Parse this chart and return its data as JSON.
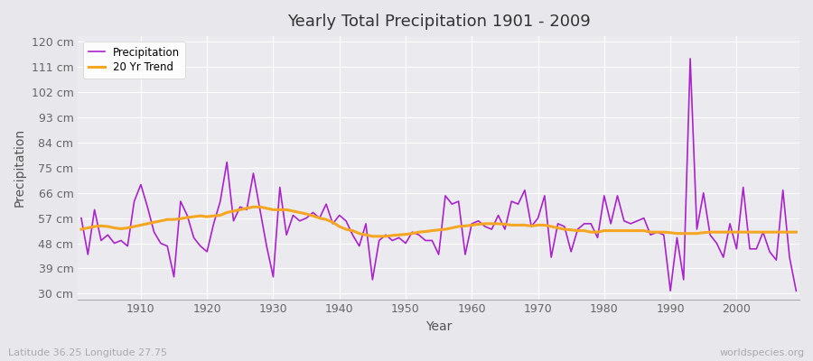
{
  "title": "Yearly Total Precipitation 1901 - 2009",
  "xlabel": "Year",
  "ylabel": "Precipitation",
  "lat_lon_label": "Latitude 36.25 Longitude 27.75",
  "watermark": "worldspecies.org",
  "years": [
    1901,
    1902,
    1903,
    1904,
    1905,
    1906,
    1907,
    1908,
    1909,
    1910,
    1911,
    1912,
    1913,
    1914,
    1915,
    1916,
    1917,
    1918,
    1919,
    1920,
    1921,
    1922,
    1923,
    1924,
    1925,
    1926,
    1927,
    1928,
    1929,
    1930,
    1931,
    1932,
    1933,
    1934,
    1935,
    1936,
    1937,
    1938,
    1939,
    1940,
    1941,
    1942,
    1943,
    1944,
    1945,
    1946,
    1947,
    1948,
    1949,
    1950,
    1951,
    1952,
    1953,
    1954,
    1955,
    1956,
    1957,
    1958,
    1959,
    1960,
    1961,
    1962,
    1963,
    1964,
    1965,
    1966,
    1967,
    1968,
    1969,
    1970,
    1971,
    1972,
    1973,
    1974,
    1975,
    1976,
    1977,
    1978,
    1979,
    1980,
    1981,
    1982,
    1983,
    1984,
    1985,
    1986,
    1987,
    1988,
    1989,
    1990,
    1991,
    1992,
    1993,
    1994,
    1995,
    1996,
    1997,
    1998,
    1999,
    2000,
    2001,
    2002,
    2003,
    2004,
    2005,
    2006,
    2007,
    2008,
    2009
  ],
  "precipitation": [
    57,
    44,
    60,
    49,
    51,
    48,
    49,
    47,
    63,
    69,
    61,
    52,
    48,
    47,
    36,
    63,
    58,
    50,
    47,
    45,
    55,
    63,
    77,
    56,
    61,
    60,
    73,
    60,
    47,
    36,
    68,
    51,
    58,
    56,
    57,
    59,
    57,
    62,
    55,
    58,
    56,
    51,
    47,
    55,
    35,
    49,
    51,
    49,
    50,
    48,
    52,
    51,
    49,
    49,
    44,
    65,
    62,
    63,
    44,
    55,
    56,
    54,
    53,
    58,
    53,
    63,
    62,
    67,
    54,
    57,
    65,
    43,
    55,
    54,
    45,
    53,
    55,
    55,
    50,
    65,
    55,
    65,
    56,
    55,
    56,
    57,
    51,
    52,
    51,
    31,
    50,
    35,
    114,
    53,
    66,
    51,
    48,
    43,
    55,
    46,
    68,
    46,
    46,
    52,
    45,
    42,
    67,
    43,
    31
  ],
  "trend": [
    53.0,
    53.5,
    54.0,
    54.2,
    54.0,
    53.5,
    53.2,
    53.5,
    54.0,
    54.5,
    55.0,
    55.5,
    56.0,
    56.5,
    56.5,
    56.8,
    57.2,
    57.5,
    57.8,
    57.5,
    57.8,
    58.0,
    59.0,
    59.5,
    60.0,
    60.5,
    61.0,
    61.0,
    60.5,
    60.0,
    60.0,
    60.0,
    59.5,
    59.0,
    58.5,
    57.8,
    57.0,
    56.5,
    55.5,
    54.0,
    53.0,
    52.5,
    51.5,
    51.0,
    50.5,
    50.5,
    50.5,
    50.8,
    51.0,
    51.2,
    51.5,
    52.0,
    52.2,
    52.5,
    52.8,
    53.0,
    53.5,
    54.0,
    54.2,
    54.5,
    54.8,
    55.0,
    55.0,
    55.0,
    54.8,
    54.5,
    54.5,
    54.5,
    54.2,
    54.5,
    54.5,
    54.0,
    53.5,
    53.0,
    52.8,
    52.5,
    52.5,
    52.0,
    52.0,
    52.5,
    52.5,
    52.5,
    52.5,
    52.5,
    52.5,
    52.5,
    52.0,
    52.0,
    52.0,
    51.8,
    51.5,
    51.5,
    51.5,
    51.5,
    51.8,
    52.0,
    52.0,
    52.0,
    52.0,
    52.0,
    52.0,
    52.0,
    52.0,
    52.0,
    52.0,
    52.0,
    52.0,
    52.0,
    52.0
  ],
  "precip_color": "#aa22cc",
  "trend_color": "#f5a623",
  "background_color": "#e8e8ec",
  "plot_bg_color": "#eaeaef",
  "grid_color": "#ffffff",
  "ytick_labels": [
    "30 cm",
    "39 cm",
    "48 cm",
    "57 cm",
    "66 cm",
    "75 cm",
    "84 cm",
    "93 cm",
    "102 cm",
    "111 cm",
    "120 cm"
  ],
  "ytick_values": [
    30,
    39,
    48,
    57,
    66,
    75,
    84,
    93,
    102,
    111,
    120
  ],
  "ylim": [
    28,
    122
  ],
  "xlim": [
    1900.5,
    2009.5
  ]
}
